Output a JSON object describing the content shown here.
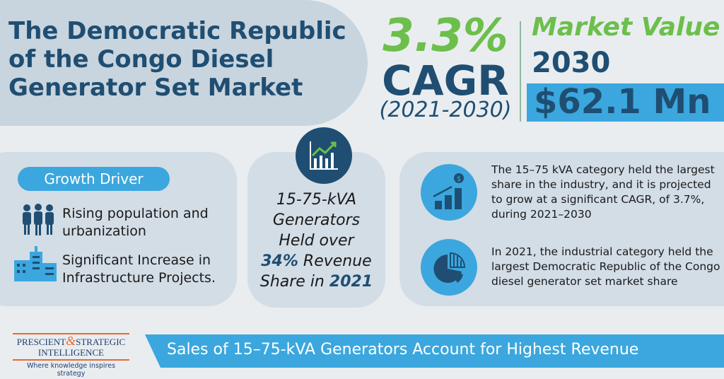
{
  "title": "The Democratic Republic of the Congo Diesel Generator Set Market",
  "cagr": {
    "value": "3.3%",
    "label": "CAGR",
    "period": "(2021-2030)"
  },
  "market_value": {
    "label": "Market Value",
    "year": "2030",
    "value": "$62.1 Mn"
  },
  "growth_driver": {
    "label": "Growth Driver",
    "items": [
      "Rising population and urbanization",
      "Significant Increase in Infrastructure Projects."
    ]
  },
  "highlight": {
    "line1": "15-75-kVA",
    "line2": "Generators",
    "line3": "Held over",
    "pct": "34%",
    "line4": "Revenue",
    "line5": "Share in",
    "year": "2021"
  },
  "insights": [
    "The 15–75 kVA category held the largest share in the industry, and it is projected to grow at a significant CAGR, of 3.7%, during 2021–2030",
    "In 2021, the industrial category held the largest Democratic Republic of the Congo diesel generator set market share"
  ],
  "logo": {
    "line1a": "PRESCIENT",
    "amp": "&",
    "line1b": "STRATEGIC",
    "line2": "INTELLIGENCE",
    "tagline": "Where knowledge inspires strategy"
  },
  "banner": "Sales of 15–75-kVA Generators Account for Highest Revenue",
  "colors": {
    "navy": "#1f4e72",
    "green": "#6cbf4b",
    "blue": "#3ba7de",
    "orange": "#e8692e"
  }
}
